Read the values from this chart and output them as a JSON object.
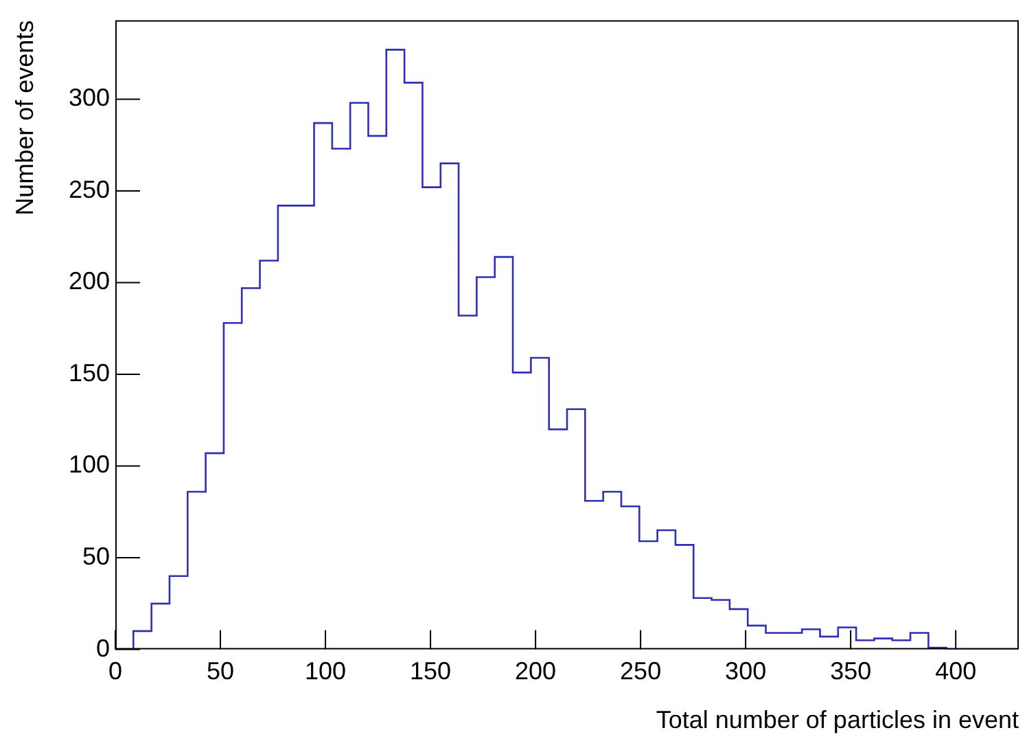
{
  "chart_data": {
    "type": "histogram",
    "xlabel": "Total number of particles in event",
    "ylabel": "Number of events",
    "bins": [
      0,
      8.6,
      17.2,
      25.8,
      34.4,
      43,
      51.6,
      60.2,
      68.8,
      77.4,
      86,
      94.6,
      103.2,
      111.8,
      120.4,
      129,
      137.6,
      146.2,
      154.8,
      163.4,
      172,
      180.6,
      189.2,
      197.8,
      206.4,
      215,
      223.6,
      232.2,
      240.8,
      249.4,
      258,
      266.6,
      275.2,
      283.8,
      292.4,
      301,
      309.6,
      318.2,
      326.8,
      335.4,
      344,
      352.6,
      361.2,
      369.8,
      378.4,
      387,
      395.6,
      404.2,
      412.8,
      421.4,
      430
    ],
    "values": [
      0,
      10,
      25,
      40,
      86,
      107,
      178,
      197,
      212,
      242,
      242,
      287,
      273,
      298,
      280,
      327,
      309,
      252,
      265,
      182,
      203,
      214,
      151,
      159,
      120,
      131,
      81,
      86,
      78,
      59,
      65,
      57,
      28,
      27,
      22,
      13,
      9,
      9,
      11,
      7,
      12,
      5,
      6,
      5,
      9,
      1,
      0,
      0,
      0,
      0
    ],
    "color": "#2e2eb8",
    "xlim": [
      0,
      430
    ],
    "xticks": [
      0,
      50,
      100,
      150,
      200,
      250,
      300,
      350,
      400
    ],
    "ylim": [
      0,
      343
    ],
    "yticks": [
      0,
      50,
      100,
      150,
      200,
      250,
      300
    ],
    "grid": false,
    "legend": false
  }
}
